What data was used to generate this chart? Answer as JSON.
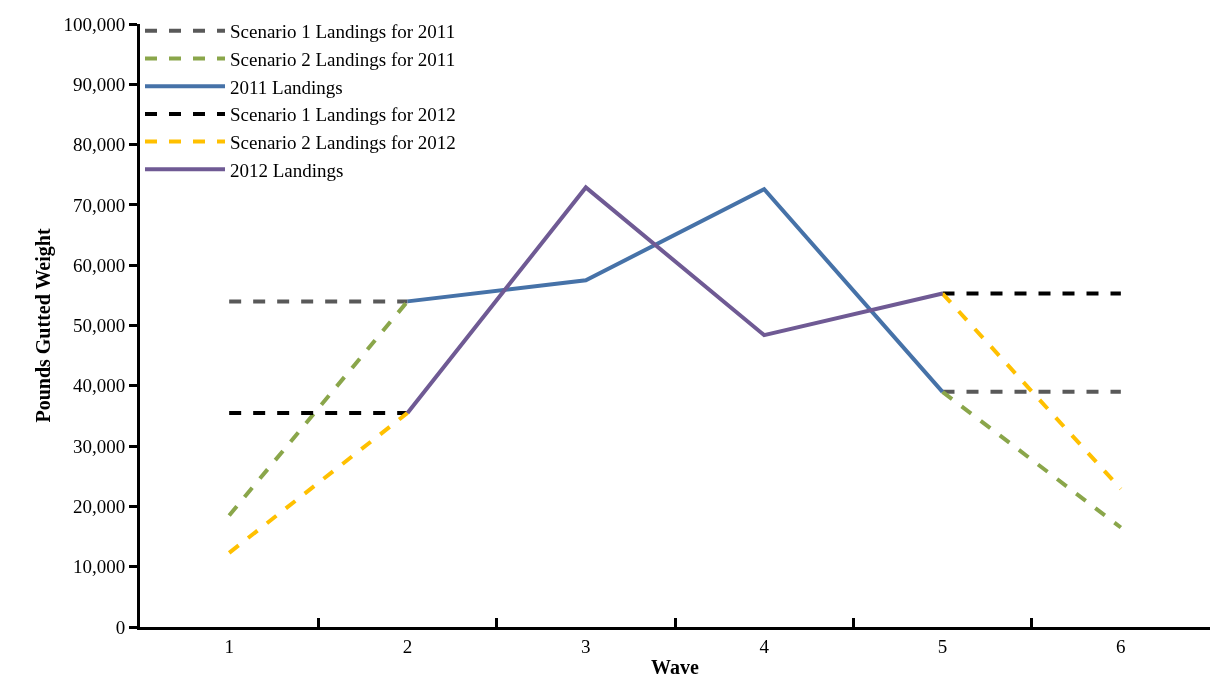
{
  "chart_data": {
    "type": "line",
    "xlabel": "Wave",
    "ylabel": "Pounds Gutted Weight",
    "categories": [
      "1",
      "2",
      "3",
      "4",
      "5",
      "6"
    ],
    "ylim": [
      0,
      100000
    ],
    "yticks": [
      {
        "value": 0,
        "label": "0"
      },
      {
        "value": 10000,
        "label": "10,000"
      },
      {
        "value": 20000,
        "label": "20,000"
      },
      {
        "value": 30000,
        "label": "30,000"
      },
      {
        "value": 40000,
        "label": "40,000"
      },
      {
        "value": 50000,
        "label": "50,000"
      },
      {
        "value": 60000,
        "label": "60,000"
      },
      {
        "value": 70000,
        "label": "70,000"
      },
      {
        "value": 80000,
        "label": "80,000"
      },
      {
        "value": 90000,
        "label": "90,000"
      },
      {
        "value": 100000,
        "label": "100,000"
      }
    ],
    "legend": "top left",
    "marker": "none",
    "series": [
      {
        "name": "Scenario 1 Landings for 2011",
        "color": "#595959",
        "line_style": "dashed",
        "values": [
          54000,
          54000,
          null,
          null,
          39000,
          39000
        ]
      },
      {
        "name": "Scenario 2 Landings for 2011",
        "color": "#8aa64a",
        "line_style": "dashed",
        "values": [
          18500,
          54000,
          null,
          null,
          39000,
          16500
        ]
      },
      {
        "name": "2011 Landings",
        "color": "#4672a8",
        "line_style": "solid",
        "values": [
          null,
          54000,
          57500,
          72600,
          39000,
          null
        ]
      },
      {
        "name": "Scenario 1 Landings for 2012",
        "color": "#000000",
        "line_style": "dashed",
        "values": [
          35500,
          35500,
          null,
          null,
          55300,
          55300
        ]
      },
      {
        "name": "Scenario 2 Landings for 2012",
        "color": "#ffc000",
        "line_style": "dashed",
        "values": [
          12300,
          35500,
          null,
          null,
          55300,
          22900
        ]
      },
      {
        "name": "2012 Landings",
        "color": "#6f5a94",
        "line_style": "solid",
        "values": [
          null,
          35500,
          72900,
          48400,
          55300,
          null
        ]
      }
    ]
  }
}
